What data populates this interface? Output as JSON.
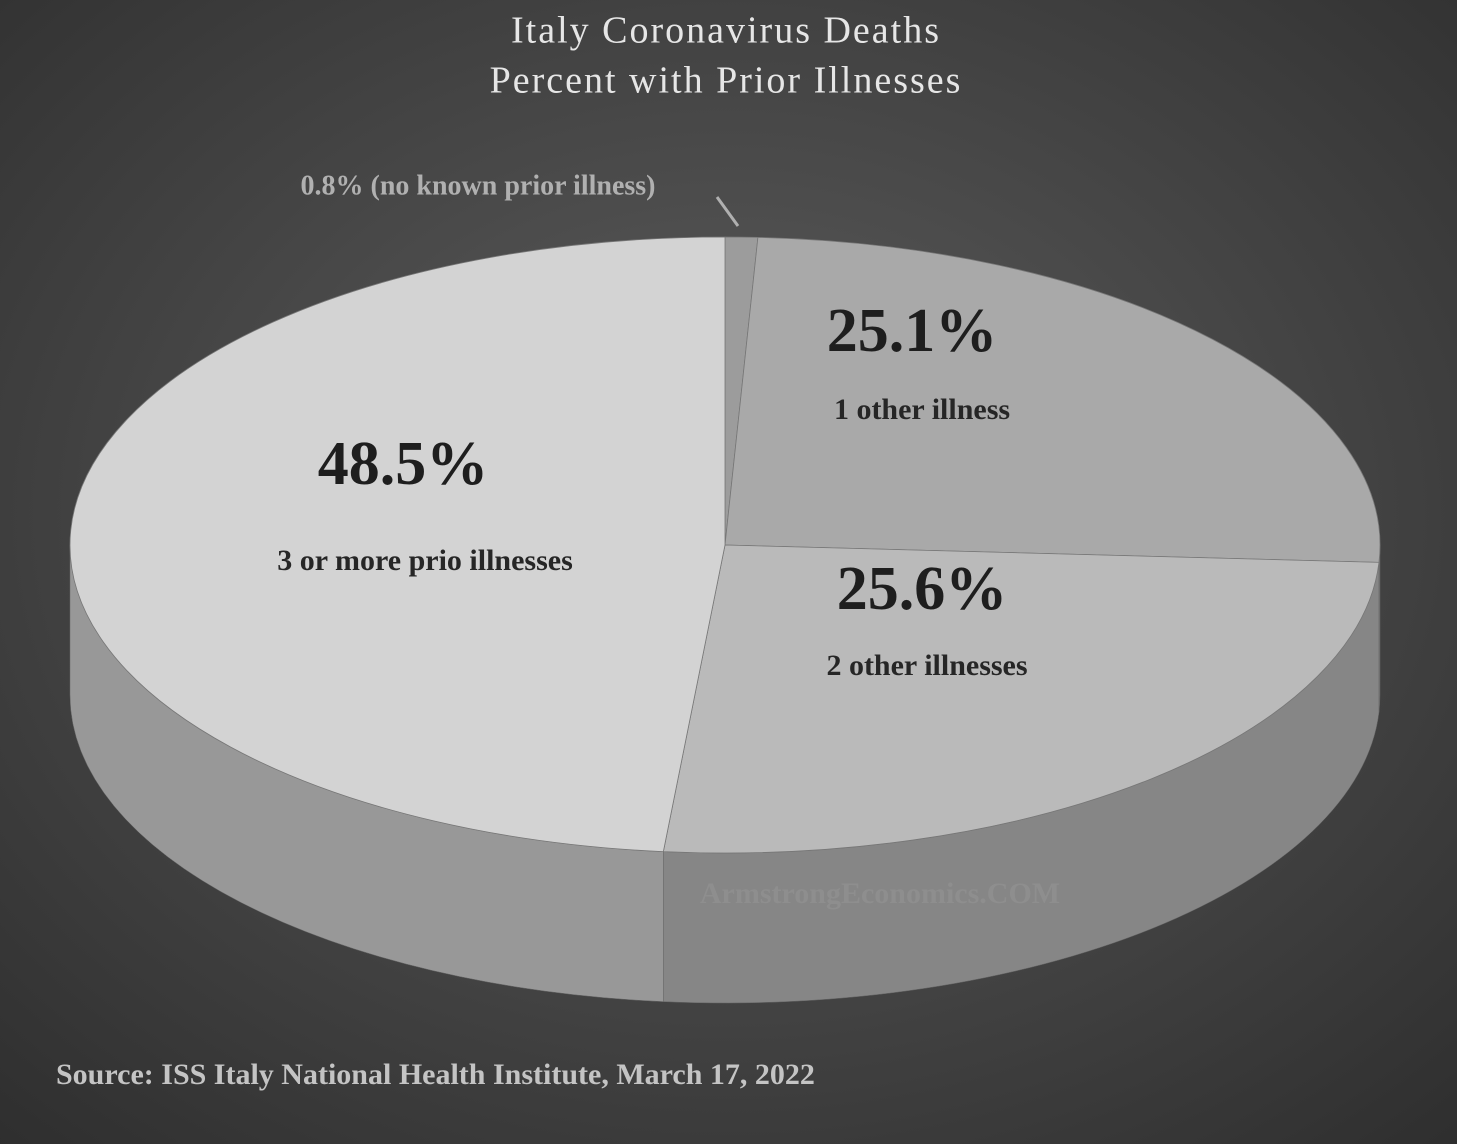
{
  "chart_data": {
    "type": "pie3d",
    "title": "Italy Coronavirus Deaths",
    "subtitle": "Percent with Prior Illnesses",
    "categories": [
      null,
      "1 other illness",
      "2 other illnesses",
      "3 or more prio illnesses"
    ],
    "values": [
      0.8,
      25.1,
      25.6,
      48.5
    ],
    "value_labels": [
      "0.8% (no known prior illness)",
      "25.1%",
      "25.6%",
      "48.5%"
    ],
    "colors": [
      "#9c9c9c",
      "#a9a9a9",
      "#bababa",
      "#d3d3d3"
    ],
    "watermark": "ArmstrongEconomics.COM",
    "source": "Source: ISS Italy National Health Institute, March 17, 2022"
  }
}
